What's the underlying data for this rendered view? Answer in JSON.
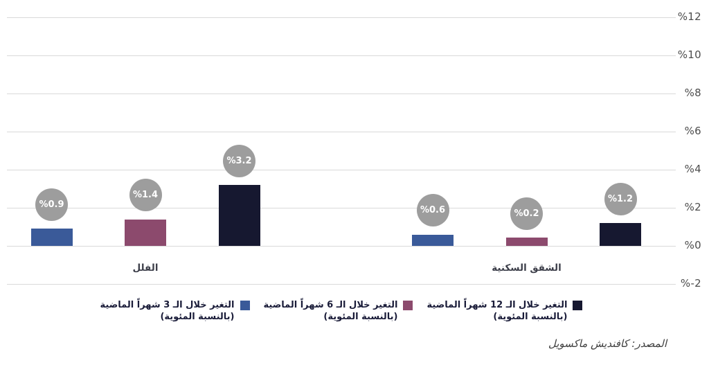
{
  "chart_data": {
    "type": "bar",
    "direction": "rtl",
    "categories": [
      "الفلل",
      "الشقق السكنية"
    ],
    "series": [
      {
        "name": "التغير خلال الـ 3 شهراً الماضية (بالنسبة المئوية)",
        "color": "#3a5a99",
        "values": [
          0.9,
          0.6
        ],
        "value_labels": [
          "%0.9",
          "%0.6"
        ]
      },
      {
        "name": "التغير خلال الـ 6 شهراً الماضية (بالنسبة المئوية)",
        "color": "#8c4a6d",
        "values": [
          1.4,
          0.2
        ],
        "value_labels": [
          "%1.4",
          "%0.2"
        ]
      },
      {
        "name": "التغير خلال الـ 12 شهراً الماضية (بالنسبة المئوية)",
        "color": "#161830",
        "values": [
          3.2,
          1.2
        ],
        "value_labels": [
          "%3.2",
          "%1.2"
        ]
      }
    ],
    "ylim": [
      -2,
      12
    ],
    "yticks": [
      {
        "value": 12,
        "label": "%12"
      },
      {
        "value": 10,
        "label": "%10"
      },
      {
        "value": 8,
        "label": "%8"
      },
      {
        "value": 6,
        "label": "%6"
      },
      {
        "value": 4,
        "label": "%4"
      },
      {
        "value": 2,
        "label": "%2"
      },
      {
        "value": 0,
        "label": "%0"
      },
      {
        "value": -2,
        "label": "%-2"
      }
    ],
    "grid": true,
    "legend_position": "bottom-center",
    "value_label_style": "gray-circle",
    "value_circle_color": "#9d9d9d",
    "gridline_color": "#d9d9d9"
  },
  "legend": {
    "entries": [
      {
        "line1": "التغير خلال الـ 12 شهراً الماضية",
        "line2": "(بالنسبة المئوية)",
        "color": "#161830"
      },
      {
        "line1": "التغير خلال الـ 6 شهراً الماضية",
        "line2": "(بالنسبة المئوية)",
        "color": "#8c4a6d"
      },
      {
        "line1": "التغير خلال الـ 3 شهراً الماضية",
        "line2": "(بالنسبة المئوية)",
        "color": "#3a5a99"
      }
    ]
  },
  "source": "المصدر: كافنديش ماكسويل"
}
